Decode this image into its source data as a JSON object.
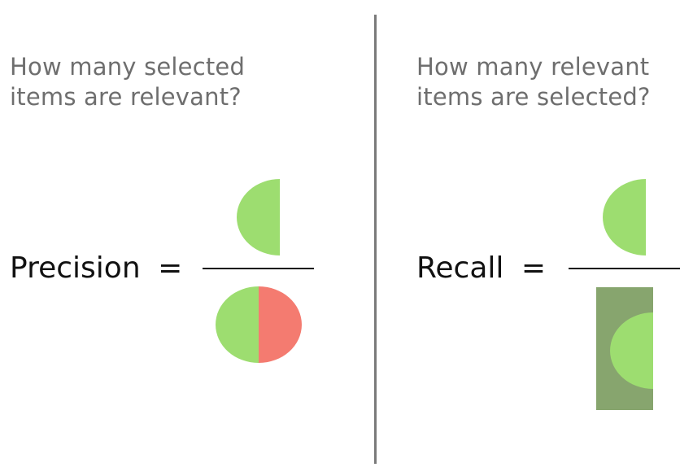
{
  "precision": {
    "question_line1": "How many selected",
    "question_line2": "items are relevant?",
    "label": "Precision",
    "equals": "="
  },
  "recall": {
    "question_line1": "How many relevant",
    "question_line2": "items are selected?",
    "label": "Recall",
    "equals": "="
  },
  "colors": {
    "relevant_selected": "#9ddd70",
    "irrelevant_selected": "#f47b70",
    "relevant_box": "#87a56e",
    "fraction_line": "#111111",
    "divider": "#7a7a7a",
    "question_text": "#6e6e6e"
  }
}
